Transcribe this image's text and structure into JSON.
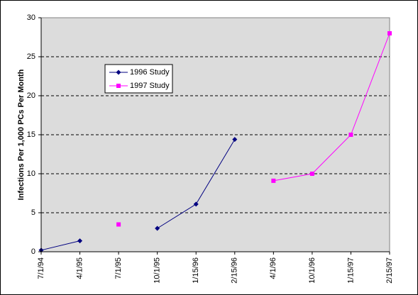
{
  "chart_data": {
    "type": "line",
    "y_label": "Infections Per 1,000 PCs Per Month",
    "categories": [
      "7/1/94",
      "4/1/95",
      "7/1/95",
      "10/1/95",
      "1/15/96",
      "2/15/96",
      "4/1/96",
      "10/1/96",
      "1/15/97",
      "2/15/97"
    ],
    "series": [
      {
        "name": "1996 Study",
        "color": "#000080",
        "marker": "diamond",
        "values": [
          0.2,
          1.4,
          null,
          3.0,
          6.1,
          14.4,
          null,
          null,
          null,
          null
        ]
      },
      {
        "name": "1997 Study",
        "color": "#ff00ff",
        "marker": "square",
        "values": [
          null,
          null,
          3.5,
          null,
          null,
          null,
          9.1,
          10.0,
          15.0,
          28.0
        ]
      }
    ],
    "ylim": [
      0,
      30
    ],
    "yticks": [
      0,
      5,
      10,
      15,
      20,
      25,
      30
    ],
    "grid": true,
    "legend_position": "upper left"
  }
}
